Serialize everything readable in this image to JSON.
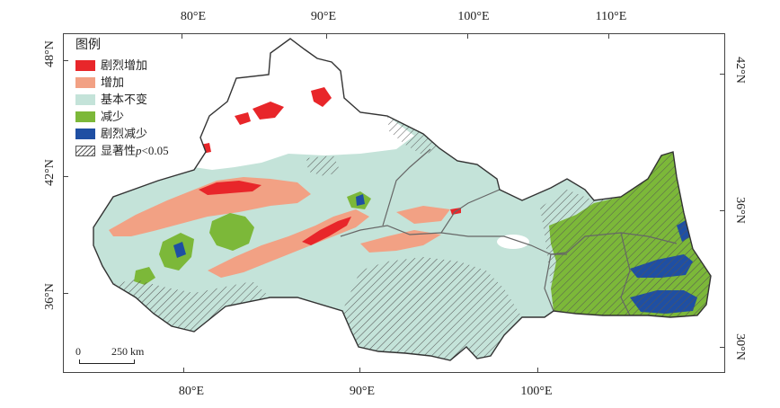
{
  "legend": {
    "title": "图例",
    "items": [
      {
        "label": "剧烈增加",
        "color": "#e8262a",
        "pattern": "solid"
      },
      {
        "label": "增加",
        "color": "#f2a184",
        "pattern": "solid"
      },
      {
        "label": "基本不变",
        "color": "#c4e3d9",
        "pattern": "solid"
      },
      {
        "label": "减少",
        "color": "#7cb839",
        "pattern": "solid"
      },
      {
        "label": "剧烈减少",
        "color": "#1f4fa3",
        "pattern": "solid"
      }
    ],
    "significance_prefix": "显著性",
    "significance_var": "p",
    "significance_suffix": "<0.05",
    "significance_pattern": "hatched"
  },
  "axes": {
    "top_ticks": [
      "80°E",
      "90°E",
      "100°E",
      "110°E"
    ],
    "bottom_ticks": [
      "80°E",
      "90°E",
      "100°E"
    ],
    "left_ticks": [
      "48°N",
      "42°N",
      "36°N"
    ],
    "right_ticks": [
      "42°N",
      "36°N",
      "30°N"
    ]
  },
  "scalebar": {
    "zero": "0",
    "distance": "250 km"
  },
  "colors": {
    "outline": "#333333",
    "province_border": "#666666",
    "no_data": "#ffffff"
  }
}
